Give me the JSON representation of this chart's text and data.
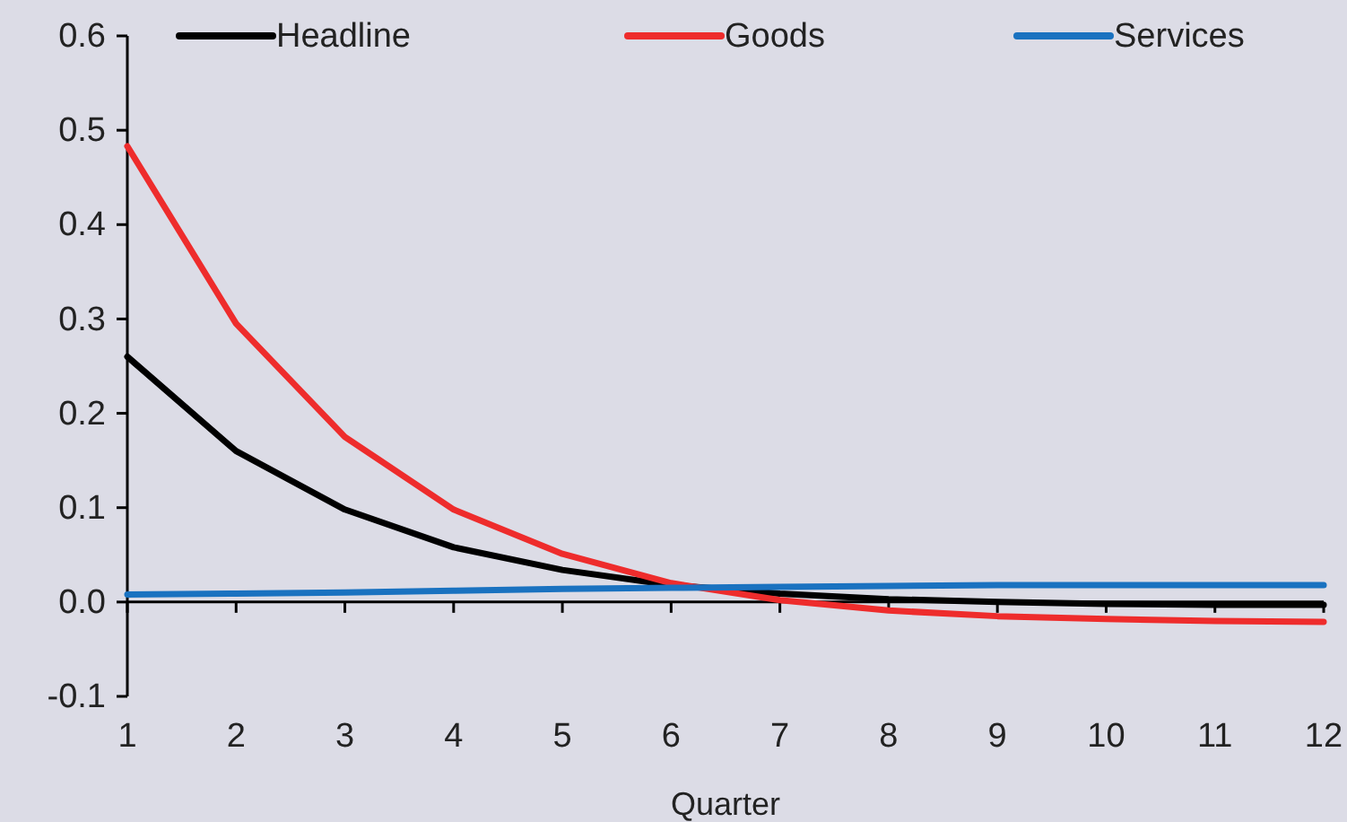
{
  "chart_data": {
    "type": "line",
    "xlabel": "Quarter",
    "x": [
      1,
      2,
      3,
      4,
      5,
      6,
      7,
      8,
      9,
      10,
      11,
      12
    ],
    "xlim": [
      1,
      12
    ],
    "xticks": [
      1,
      2,
      3,
      4,
      5,
      6,
      7,
      8,
      9,
      10,
      11,
      12
    ],
    "ylim": [
      -0.1,
      0.6
    ],
    "yticks": [
      {
        "value": -0.1,
        "label": "-0.1"
      },
      {
        "value": 0,
        "label": "0.0"
      },
      {
        "value": 0.1,
        "label": "0.1"
      },
      {
        "value": 0.2,
        "label": "0.2"
      },
      {
        "value": 0.3,
        "label": "0.3"
      },
      {
        "value": 0.4,
        "label": "0.4"
      },
      {
        "value": 0.5,
        "label": "0.5"
      },
      {
        "value": 0.6,
        "label": "0.6"
      }
    ],
    "legend": "top",
    "marker": "none",
    "line_style": "solid",
    "series": [
      {
        "name": "Headline",
        "color": "#000000",
        "values": [
          0.26,
          0.16,
          0.098,
          0.058,
          0.034,
          0.018,
          0.009,
          0.003,
          0.0,
          -0.002,
          -0.003,
          -0.003
        ]
      },
      {
        "name": "Goods",
        "color": "#ee2c2c",
        "values": [
          0.483,
          0.295,
          0.175,
          0.098,
          0.051,
          0.02,
          0.002,
          -0.009,
          -0.015,
          -0.018,
          -0.02,
          -0.021
        ]
      },
      {
        "name": "Services",
        "color": "#1a72c0",
        "values": [
          0.008,
          0.009,
          0.01,
          0.012,
          0.014,
          0.015,
          0.016,
          0.017,
          0.018,
          0.018,
          0.018,
          0.018
        ]
      }
    ]
  }
}
